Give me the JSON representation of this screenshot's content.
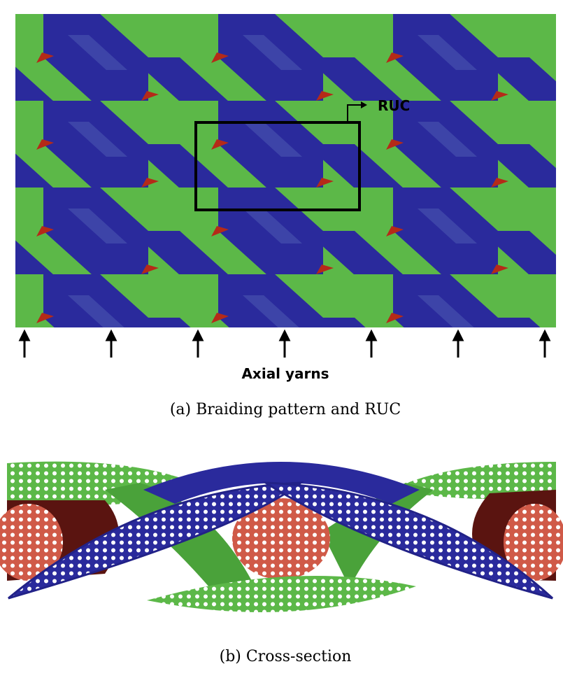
{
  "figure_a": {
    "box_label": "RUC",
    "arrow_label": "Axial yarns",
    "caption": "(a) Braiding pattern and RUC"
  },
  "figure_b": {
    "caption": "(b) Cross-section"
  }
}
